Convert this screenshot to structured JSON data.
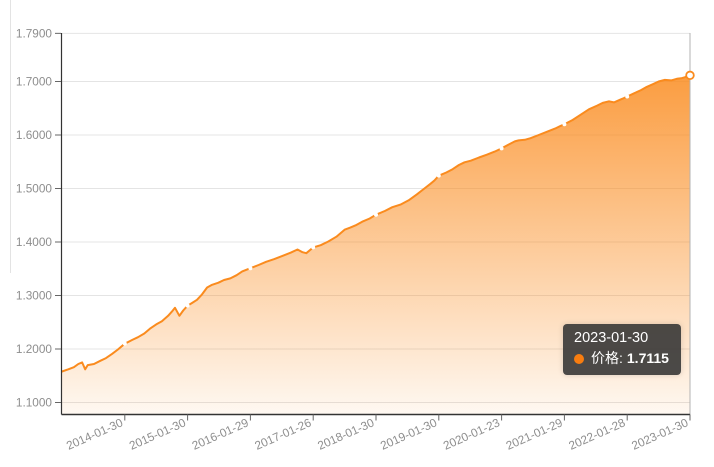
{
  "style": {
    "accent_line_color": "#FA8B1E",
    "area_top_color": "rgba(250,139,30,0.85)",
    "area_bottom_color": "rgba(250,139,30,0.06)",
    "grid_color": "#e4e4e4",
    "axis_color": "#333333",
    "tick_color": "#666666",
    "label_color": "#8e8e8e",
    "pointer_line_color": "#b3b3b3",
    "marker_fill": "#ffffff",
    "tooltip_dot_color": "#f87d10",
    "tooltip_bg": "rgba(50,50,50,0.88)"
  },
  "tooltip": {
    "date": "2023-01-30",
    "series_label": "价格:",
    "value": "1.7115"
  },
  "chart_data": {
    "type": "area",
    "title": "",
    "series_name": "价格",
    "legend": null,
    "grid": true,
    "x_tick_labels": [
      "2014-01-30",
      "2015-01-30",
      "2016-01-29",
      "2017-01-26",
      "2018-01-30",
      "2019-01-30",
      "2020-01-23",
      "2021-01-29",
      "2022-01-28",
      "2023-01-30"
    ],
    "x_tick_positions_years": [
      1,
      2,
      3,
      4,
      5,
      6,
      7,
      8,
      9,
      10
    ],
    "xlim_years": [
      0,
      10
    ],
    "y_tick_labels": [
      "1.1000",
      "1.2000",
      "1.3000",
      "1.4000",
      "1.5000",
      "1.6000",
      "1.7000",
      "1.7900"
    ],
    "y_tick_values": [
      1.1,
      1.2,
      1.3,
      1.4,
      1.5,
      1.6,
      1.7,
      1.79
    ],
    "ylim": [
      1.078,
      1.79
    ],
    "marker_values_at_ticks": [
      1.21,
      1.281,
      1.351,
      1.39,
      1.451,
      1.524,
      1.575,
      1.62,
      1.672,
      1.7115
    ],
    "hover": {
      "year": 10,
      "date": "2023-01-30",
      "value": 1.7115
    },
    "points_year_value": [
      [
        0,
        1.158
      ],
      [
        0.1,
        1.162
      ],
      [
        0.19,
        1.166
      ],
      [
        0.26,
        1.172
      ],
      [
        0.32,
        1.175
      ],
      [
        0.37,
        1.162
      ],
      [
        0.41,
        1.17
      ],
      [
        0.51,
        1.172
      ],
      [
        0.61,
        1.178
      ],
      [
        0.7,
        1.183
      ],
      [
        0.8,
        1.191
      ],
      [
        0.89,
        1.199
      ],
      [
        1,
        1.21
      ],
      [
        1.12,
        1.217
      ],
      [
        1.21,
        1.222
      ],
      [
        1.31,
        1.229
      ],
      [
        1.4,
        1.238
      ],
      [
        1.5,
        1.246
      ],
      [
        1.59,
        1.252
      ],
      [
        1.69,
        1.262
      ],
      [
        1.75,
        1.27
      ],
      [
        1.8,
        1.277
      ],
      [
        1.87,
        1.262
      ],
      [
        1.93,
        1.272
      ],
      [
        2,
        1.281
      ],
      [
        2.07,
        1.286
      ],
      [
        2.15,
        1.292
      ],
      [
        2.23,
        1.302
      ],
      [
        2.31,
        1.315
      ],
      [
        2.39,
        1.32
      ],
      [
        2.49,
        1.324
      ],
      [
        2.58,
        1.329
      ],
      [
        2.68,
        1.332
      ],
      [
        2.78,
        1.338
      ],
      [
        2.87,
        1.345
      ],
      [
        3,
        1.351
      ],
      [
        3.13,
        1.357
      ],
      [
        3.25,
        1.363
      ],
      [
        3.38,
        1.368
      ],
      [
        3.51,
        1.374
      ],
      [
        3.64,
        1.38
      ],
      [
        3.75,
        1.386
      ],
      [
        3.83,
        1.381
      ],
      [
        3.89,
        1.379
      ],
      [
        3.96,
        1.386
      ],
      [
        4,
        1.39
      ],
      [
        4.12,
        1.394
      ],
      [
        4.24,
        1.401
      ],
      [
        4.37,
        1.41
      ],
      [
        4.5,
        1.423
      ],
      [
        4.59,
        1.427
      ],
      [
        4.69,
        1.432
      ],
      [
        4.78,
        1.438
      ],
      [
        4.9,
        1.444
      ],
      [
        5,
        1.451
      ],
      [
        5.14,
        1.458
      ],
      [
        5.26,
        1.465
      ],
      [
        5.39,
        1.47
      ],
      [
        5.52,
        1.478
      ],
      [
        5.65,
        1.489
      ],
      [
        5.77,
        1.5
      ],
      [
        5.87,
        1.509
      ],
      [
        5.93,
        1.515
      ],
      [
        6,
        1.524
      ],
      [
        6.12,
        1.53
      ],
      [
        6.22,
        1.536
      ],
      [
        6.32,
        1.544
      ],
      [
        6.41,
        1.549
      ],
      [
        6.51,
        1.552
      ],
      [
        6.64,
        1.558
      ],
      [
        6.76,
        1.563
      ],
      [
        6.89,
        1.569
      ],
      [
        7,
        1.575
      ],
      [
        7.11,
        1.582
      ],
      [
        7.21,
        1.588
      ],
      [
        7.27,
        1.59
      ],
      [
        7.37,
        1.591
      ],
      [
        7.46,
        1.594
      ],
      [
        7.59,
        1.6
      ],
      [
        7.72,
        1.606
      ],
      [
        7.85,
        1.612
      ],
      [
        7.94,
        1.617
      ],
      [
        8,
        1.62
      ],
      [
        8.13,
        1.628
      ],
      [
        8.26,
        1.638
      ],
      [
        8.39,
        1.648
      ],
      [
        8.52,
        1.655
      ],
      [
        8.61,
        1.66
      ],
      [
        8.71,
        1.663
      ],
      [
        8.79,
        1.661
      ],
      [
        8.87,
        1.665
      ],
      [
        8.93,
        1.668
      ],
      [
        9,
        1.672
      ],
      [
        9.11,
        1.678
      ],
      [
        9.22,
        1.684
      ],
      [
        9.31,
        1.69
      ],
      [
        9.41,
        1.695
      ],
      [
        9.5,
        1.7
      ],
      [
        9.6,
        1.703
      ],
      [
        9.7,
        1.702
      ],
      [
        9.79,
        1.705
      ],
      [
        9.86,
        1.706
      ],
      [
        9.92,
        1.708
      ],
      [
        10,
        1.7115
      ]
    ]
  }
}
